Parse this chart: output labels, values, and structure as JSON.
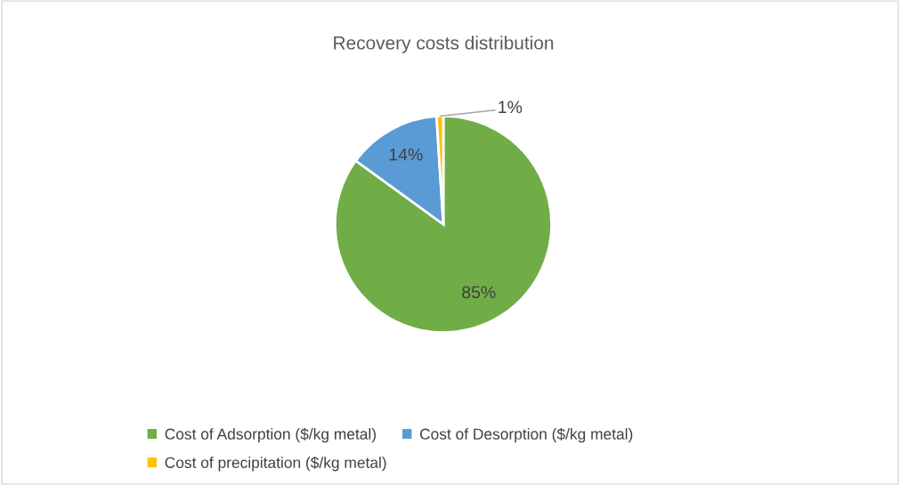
{
  "chart_data": {
    "type": "pie",
    "title": "Recovery costs distribution",
    "categories": [
      "Cost of Adsorption ($/kg metal)",
      "Cost of Desorption ($/kg metal)",
      "Cost of precipitation ($/kg metal)"
    ],
    "values": [
      85,
      14,
      1
    ],
    "colors": [
      "#70ad47",
      "#5b9bd5",
      "#ffc000"
    ],
    "value_labels": [
      "85%",
      "14%",
      "1%"
    ],
    "legend": "bottom"
  }
}
